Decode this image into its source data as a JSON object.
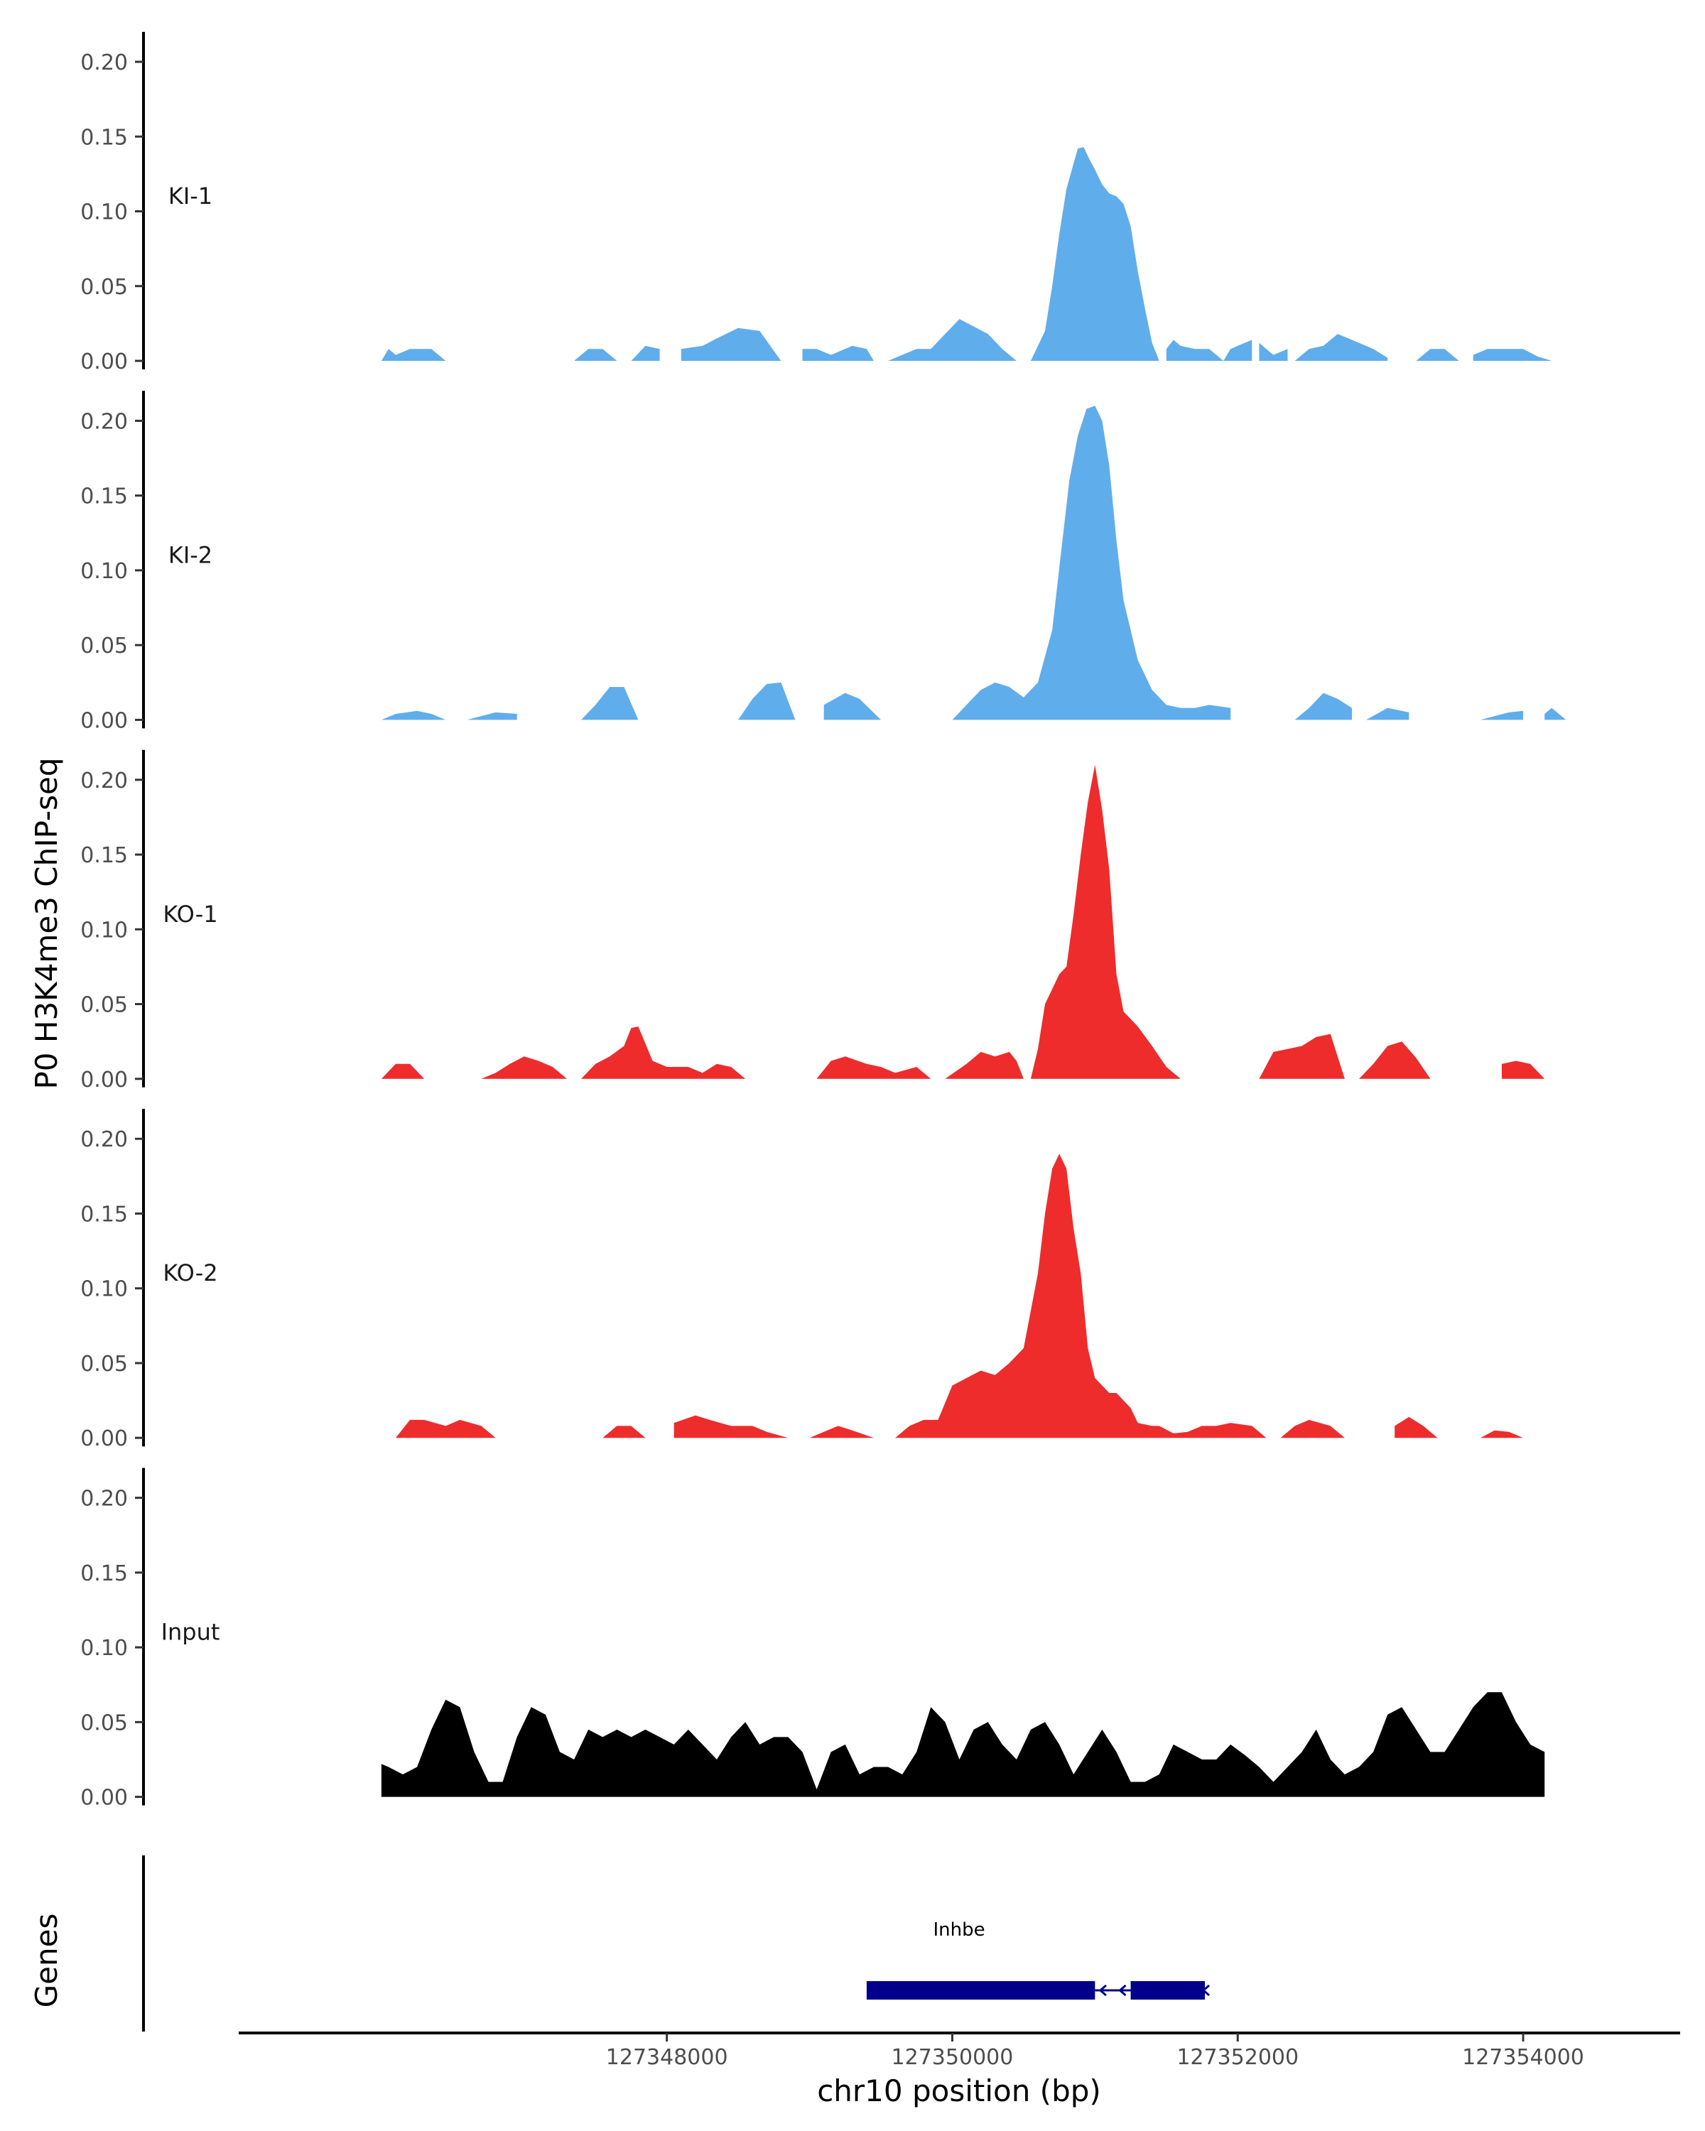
{
  "chart_data": {
    "type": "area",
    "title": "",
    "ylabel": "P0 H3K4me3 ChIP-seq",
    "xlabel": "chr10 position (bp)",
    "xlim": [
      127345000,
      127355100
    ],
    "ylim": [
      0,
      0.22
    ],
    "y_ticks": [
      0.0,
      0.05,
      0.1,
      0.15,
      0.2
    ],
    "y_tick_labels": [
      "0.00",
      "0.05",
      "0.10",
      "0.15",
      "0.20"
    ],
    "x_ticks": [
      127348000,
      127350000,
      127352000,
      127354000
    ],
    "x_tick_labels": [
      "127348000",
      "127350000",
      "127352000",
      "127354000"
    ],
    "colors": {
      "KI": "#60ADEC",
      "KO": "#EE2C2C",
      "Input": "#000000",
      "gene": "#00008B"
    },
    "series": [
      {
        "name": "KI-1",
        "color": "#60ADEC",
        "x": [
          127346000,
          127346050,
          127346100,
          127346200,
          127346350,
          127346450,
          127346550,
          127347350,
          127347450,
          127347550,
          127347650,
          127347750,
          127347850,
          127347950,
          127348100,
          127348250,
          127348350,
          127348500,
          127348650,
          127348800,
          127348950,
          127349050,
          127349150,
          127349300,
          127349400,
          127349450,
          127349550,
          127349650,
          127349750,
          127349850,
          127349950,
          127350050,
          127350150,
          127350250,
          127350350,
          127350450,
          127350550,
          127350650,
          127350700,
          127350750,
          127350800,
          127350850,
          127350880,
          127350920,
          127350960,
          127351000,
          127351050,
          127351100,
          127351150,
          127351200,
          127351250,
          127351300,
          127351350,
          127351400,
          127351450,
          127351500,
          127351550,
          127351600,
          127351700,
          127351800,
          127351900,
          127351950,
          127352000,
          127352100,
          127352150,
          127352200,
          127352250,
          127352350,
          127352400,
          127352500,
          127352600,
          127352700,
          127352800,
          127352900,
          127352950,
          127353050,
          127353100,
          127353250,
          127353350,
          127353450,
          127353550,
          127353650,
          127353750,
          127353850,
          127354000,
          127354100,
          127354200
        ],
        "values": [
          0,
          0.008,
          0.004,
          0.008,
          0.008,
          0,
          0,
          0,
          0.008,
          0.008,
          0,
          0,
          0.01,
          0.008,
          0.008,
          0.01,
          0.015,
          0.022,
          0.02,
          0,
          0.008,
          0.008,
          0.004,
          0.01,
          0.008,
          0,
          0,
          0.004,
          0.008,
          0.008,
          0.018,
          0.028,
          0.023,
          0.018,
          0.008,
          0,
          0,
          0.02,
          0.05,
          0.085,
          0.115,
          0.132,
          0.142,
          0.143,
          0.135,
          0.128,
          0.118,
          0.112,
          0.11,
          0.105,
          0.09,
          0.06,
          0.035,
          0.012,
          0,
          0.008,
          0.014,
          0.01,
          0.008,
          0.008,
          0,
          0.008,
          0.01,
          0.014,
          0.012,
          0.008,
          0.004,
          0.008,
          0,
          0.008,
          0.01,
          0.018,
          0.014,
          0.01,
          0.008,
          0.002,
          0,
          0,
          0.008,
          0.008,
          0,
          0.004,
          0.008,
          0.008,
          0.008,
          0.003,
          0
        ],
        "segments": [
          [
            127346000,
            127346550
          ],
          [
            127347350,
            127347950
          ],
          [
            127348100,
            127348800
          ],
          [
            127348950,
            127349450
          ],
          [
            127349550,
            127350450
          ],
          [
            127350550,
            127351450
          ],
          [
            127351500,
            127352100
          ],
          [
            127352150,
            127352350
          ],
          [
            127352400,
            127353050
          ],
          [
            127353250,
            127353550
          ],
          [
            127353650,
            127354200
          ]
        ]
      },
      {
        "name": "KI-2",
        "color": "#60ADEC",
        "x": [
          127346000,
          127346100,
          127346250,
          127346350,
          127346450,
          127346600,
          127346800,
          127346950,
          127347400,
          127347500,
          127347600,
          127347700,
          127347800,
          127348500,
          127348600,
          127348700,
          127348800,
          127348900,
          127349100,
          127349250,
          127349350,
          127349500,
          127349600,
          127350000,
          127350100,
          127350200,
          127350300,
          127350400,
          127350500,
          127350600,
          127350700,
          127350760,
          127350820,
          127350880,
          127350940,
          127351000,
          127351050,
          127351100,
          127351150,
          127351200,
          127351300,
          127351400,
          127351500,
          127351600,
          127351700,
          127351800,
          127351950,
          127352000,
          127352400,
          127352500,
          127352600,
          127352700,
          127352800,
          127352900,
          127353050,
          127353200,
          127353400,
          127353700,
          127353900,
          127354000,
          127354150,
          127354200,
          127354300
        ],
        "values": [
          0,
          0.004,
          0.006,
          0.004,
          0,
          0,
          0.005,
          0.004,
          0,
          0.01,
          0.022,
          0.022,
          0,
          0,
          0.014,
          0.024,
          0.025,
          0,
          0.01,
          0.018,
          0.014,
          0,
          0,
          0,
          0.01,
          0.02,
          0.025,
          0.022,
          0.015,
          0.025,
          0.06,
          0.11,
          0.16,
          0.19,
          0.208,
          0.21,
          0.2,
          0.17,
          0.12,
          0.08,
          0.04,
          0.02,
          0.01,
          0.008,
          0.008,
          0.01,
          0.008,
          0.004,
          0,
          0.008,
          0.018,
          0.014,
          0.008,
          0,
          0.008,
          0.005,
          0.002,
          0,
          0.005,
          0.006,
          0.004,
          0.008,
          0
        ],
        "segments": [
          [
            127346000,
            127346450
          ],
          [
            127346600,
            127346950
          ],
          [
            127347400,
            127347800
          ],
          [
            127348500,
            127348900
          ],
          [
            127349100,
            127349500
          ],
          [
            127350000,
            127351950
          ],
          [
            127352400,
            127352800
          ],
          [
            127352900,
            127353200
          ],
          [
            127353700,
            127354000
          ],
          [
            127354150,
            127354300
          ]
        ]
      },
      {
        "name": "KO-1",
        "color": "#EE2C2C",
        "x": [
          127346000,
          127346100,
          127346200,
          127346300,
          127346700,
          127346800,
          127346900,
          127347000,
          127347100,
          127347200,
          127347300,
          127347400,
          127347500,
          127347600,
          127347700,
          127347750,
          127347800,
          127347900,
          127348000,
          127348150,
          127348250,
          127348350,
          127348450,
          127348550,
          127349050,
          127349150,
          127349250,
          127349400,
          127349500,
          127349600,
          127349750,
          127349850,
          127349950,
          127350100,
          127350200,
          127350300,
          127350400,
          127350450,
          127350500,
          127350550,
          127350600,
          127350650,
          127350700,
          127350750,
          127350800,
          127350850,
          127350900,
          127350950,
          127351000,
          127351050,
          127351100,
          127351150,
          127351200,
          127351250,
          127351300,
          127351400,
          127351500,
          127351600,
          127351700,
          127352150,
          127352250,
          127352350,
          127352450,
          127352550,
          127352650,
          127352750,
          127352850,
          127352950,
          127353050,
          127353150,
          127353250,
          127353350,
          127353450,
          127353550,
          127353650,
          127353750,
          127353850,
          127353950,
          127354050,
          127354150
        ],
        "values": [
          0,
          0.01,
          0.01,
          0,
          0,
          0.004,
          0.01,
          0.015,
          0.012,
          0.008,
          0,
          0,
          0.01,
          0.015,
          0.022,
          0.034,
          0.035,
          0.012,
          0.008,
          0.008,
          0.004,
          0.01,
          0.008,
          0,
          0,
          0.012,
          0.015,
          0.01,
          0.008,
          0.004,
          0.008,
          0,
          0,
          0.01,
          0.018,
          0.015,
          0.018,
          0.012,
          0,
          0,
          0.02,
          0.05,
          0.06,
          0.07,
          0.075,
          0.11,
          0.15,
          0.185,
          0.21,
          0.18,
          0.14,
          0.07,
          0.045,
          0.04,
          0.035,
          0.022,
          0.008,
          0,
          0,
          0,
          0.018,
          0.02,
          0.022,
          0.028,
          0.03,
          0,
          0,
          0.01,
          0.022,
          0.025,
          0.014,
          0,
          0,
          0,
          0,
          0,
          0.01,
          0.012,
          0.01,
          0
        ],
        "segments": [
          [
            127346000,
            127346300
          ],
          [
            127346700,
            127347300
          ],
          [
            127347400,
            127348550
          ],
          [
            127349050,
            127349850
          ],
          [
            127349950,
            127351700
          ],
          [
            127352150,
            127352750
          ],
          [
            127352850,
            127353350
          ],
          [
            127353850,
            127354150
          ]
        ]
      },
      {
        "name": "KO-2",
        "color": "#EE2C2C",
        "x": [
          127346100,
          127346200,
          127346300,
          127346450,
          127346550,
          127346700,
          127346800,
          127346950,
          127347550,
          127347650,
          127347750,
          127347850,
          127347950,
          127348050,
          127348200,
          127348300,
          127348450,
          127348600,
          127348700,
          127348850,
          127349000,
          127349200,
          127349300,
          127349450,
          127349600,
          127349700,
          127349800,
          127349900,
          127350000,
          127350100,
          127350200,
          127350300,
          127350400,
          127350500,
          127350600,
          127350650,
          127350700,
          127350750,
          127350800,
          127350850,
          127350900,
          127350950,
          127351000,
          127351100,
          127351150,
          127351200,
          127351250,
          127351300,
          127351400,
          127351450,
          127351550,
          127351650,
          127351750,
          127351850,
          127351950,
          127352100,
          127352200,
          127352300,
          127352400,
          127352500,
          127352650,
          127352750,
          127352850,
          127352950,
          127353100,
          127353200,
          127353300,
          127353400,
          127353500,
          127353700,
          127353800,
          127353900,
          127354000
        ],
        "values": [
          0,
          0.012,
          0.012,
          0.008,
          0.012,
          0.008,
          0,
          0,
          0,
          0.008,
          0.008,
          0,
          0,
          0.01,
          0.015,
          0.012,
          0.008,
          0.008,
          0.004,
          0,
          0,
          0.008,
          0.005,
          0,
          0,
          0.008,
          0.012,
          0.012,
          0.035,
          0.04,
          0.045,
          0.042,
          0.05,
          0.06,
          0.11,
          0.15,
          0.18,
          0.19,
          0.18,
          0.14,
          0.11,
          0.06,
          0.04,
          0.03,
          0.03,
          0.025,
          0.02,
          0.01,
          0.008,
          0.008,
          0.003,
          0.004,
          0.008,
          0.008,
          0.01,
          0.008,
          0,
          0,
          0.008,
          0.012,
          0.008,
          0,
          0,
          0,
          0.008,
          0.014,
          0.008,
          0,
          0,
          0,
          0.005,
          0.004,
          0
        ],
        "segments": [
          [
            127346100,
            127346950
          ],
          [
            127347550,
            127347950
          ],
          [
            127348050,
            127348850
          ],
          [
            127349000,
            127349450
          ],
          [
            127349600,
            127352200
          ],
          [
            127352300,
            127352750
          ],
          [
            127353100,
            127353400
          ],
          [
            127353700,
            127354000
          ]
        ]
      },
      {
        "name": "Input",
        "color": "#000000",
        "x": [
          127346000,
          127346050,
          127346150,
          127346250,
          127346350,
          127346450,
          127346550,
          127346650,
          127346750,
          127346850,
          127346950,
          127347050,
          127347150,
          127347250,
          127347350,
          127347450,
          127347550,
          127347650,
          127347750,
          127347850,
          127347950,
          127348050,
          127348150,
          127348250,
          127348350,
          127348450,
          127348550,
          127348650,
          127348750,
          127348850,
          127348950,
          127349050,
          127349150,
          127349250,
          127349350,
          127349450,
          127349550,
          127349650,
          127349750,
          127349850,
          127349950,
          127350050,
          127350150,
          127350250,
          127350350,
          127350450,
          127350550,
          127350650,
          127350750,
          127350850,
          127350950,
          127351050,
          127351150,
          127351250,
          127351350,
          127351450,
          127351550,
          127351650,
          127351750,
          127351850,
          127351950,
          127352050,
          127352150,
          127352250,
          127352350,
          127352450,
          127352550,
          127352650,
          127352750,
          127352850,
          127352950,
          127353050,
          127353150,
          127353250,
          127353350,
          127353450,
          127353550,
          127353650,
          127353750,
          127353850,
          127353950,
          127354050,
          127354150
        ],
        "values": [
          0.022,
          0.02,
          0.015,
          0.02,
          0.045,
          0.065,
          0.06,
          0.03,
          0.01,
          0.01,
          0.04,
          0.06,
          0.055,
          0.03,
          0.025,
          0.045,
          0.04,
          0.045,
          0.04,
          0.045,
          0.04,
          0.035,
          0.045,
          0.035,
          0.025,
          0.04,
          0.05,
          0.035,
          0.04,
          0.04,
          0.03,
          0.005,
          0.03,
          0.035,
          0.015,
          0.02,
          0.02,
          0.015,
          0.03,
          0.06,
          0.05,
          0.025,
          0.045,
          0.05,
          0.035,
          0.025,
          0.045,
          0.05,
          0.035,
          0.015,
          0.03,
          0.045,
          0.03,
          0.01,
          0.01,
          0.015,
          0.035,
          0.03,
          0.025,
          0.025,
          0.035,
          0.028,
          0.02,
          0.01,
          0.02,
          0.03,
          0.045,
          0.025,
          0.015,
          0.02,
          0.03,
          0.055,
          0.06,
          0.045,
          0.03,
          0.03,
          0.045,
          0.06,
          0.07,
          0.07,
          0.05,
          0.035,
          0.03
        ],
        "segments": [
          [
            127346000,
            127354150
          ]
        ]
      }
    ],
    "gene_track": {
      "label": "Genes",
      "gene_name": "Inhbe",
      "strand": "-",
      "exons": [
        [
          127349400,
          127351000
        ],
        [
          127351250,
          127351770
        ]
      ],
      "intron": [
        127351000,
        127351250
      ]
    }
  }
}
